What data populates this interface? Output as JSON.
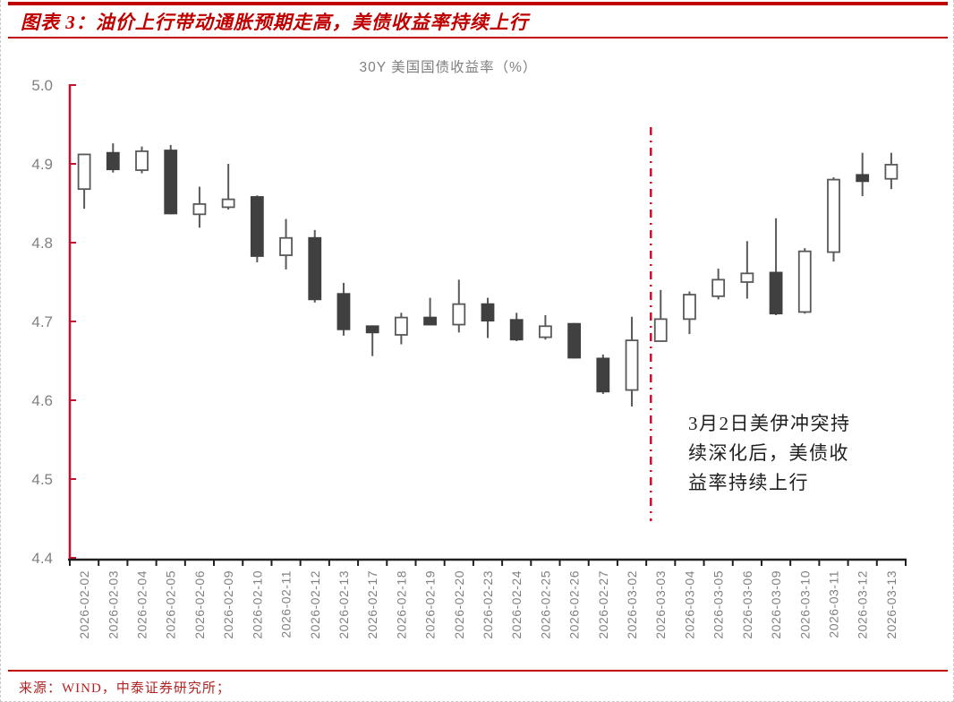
{
  "header": {
    "title": "图表 3：油价上行带动通胀预期走高，美债收益率持续上行"
  },
  "chart_data": {
    "type": "candlestick",
    "title": "30Y 美国国债收益率（%）",
    "ylim": [
      4.4,
      5.0
    ],
    "ytick_labels": [
      "5.0",
      "4.9",
      "4.8",
      "4.7",
      "4.6",
      "4.5",
      "4.4"
    ],
    "grid": "off",
    "legend": "none",
    "candles": [
      {
        "date": "2026-02-02",
        "open": 4.868,
        "high": 4.912,
        "low": 4.843,
        "close": 4.912
      },
      {
        "date": "2026-02-03",
        "open": 4.914,
        "high": 4.926,
        "low": 4.889,
        "close": 4.893
      },
      {
        "date": "2026-02-04",
        "open": 4.892,
        "high": 4.922,
        "low": 4.888,
        "close": 4.916
      },
      {
        "date": "2026-02-05",
        "open": 4.917,
        "high": 4.924,
        "low": 4.836,
        "close": 4.837
      },
      {
        "date": "2026-02-06",
        "open": 4.836,
        "high": 4.871,
        "low": 4.819,
        "close": 4.849
      },
      {
        "date": "2026-02-09",
        "open": 4.845,
        "high": 4.9,
        "low": 4.842,
        "close": 4.855
      },
      {
        "date": "2026-02-10",
        "open": 4.858,
        "high": 4.86,
        "low": 4.775,
        "close": 4.783
      },
      {
        "date": "2026-02-11",
        "open": 4.784,
        "high": 4.83,
        "low": 4.766,
        "close": 4.806
      },
      {
        "date": "2026-02-12",
        "open": 4.806,
        "high": 4.816,
        "low": 4.724,
        "close": 4.728
      },
      {
        "date": "2026-02-13",
        "open": 4.735,
        "high": 4.749,
        "low": 4.682,
        "close": 4.69
      },
      {
        "date": "2026-02-17",
        "open": 4.694,
        "high": 4.695,
        "low": 4.656,
        "close": 4.686
      },
      {
        "date": "2026-02-18",
        "open": 4.683,
        "high": 4.711,
        "low": 4.671,
        "close": 4.705
      },
      {
        "date": "2026-02-19",
        "open": 4.705,
        "high": 4.73,
        "low": 4.695,
        "close": 4.696
      },
      {
        "date": "2026-02-20",
        "open": 4.696,
        "high": 4.753,
        "low": 4.686,
        "close": 4.722
      },
      {
        "date": "2026-02-23",
        "open": 4.722,
        "high": 4.73,
        "low": 4.679,
        "close": 4.701
      },
      {
        "date": "2026-02-24",
        "open": 4.702,
        "high": 4.711,
        "low": 4.675,
        "close": 4.677
      },
      {
        "date": "2026-02-25",
        "open": 4.68,
        "high": 4.708,
        "low": 4.677,
        "close": 4.694
      },
      {
        "date": "2026-02-26",
        "open": 4.697,
        "high": 4.698,
        "low": 4.653,
        "close": 4.654
      },
      {
        "date": "2026-02-27",
        "open": 4.653,
        "high": 4.658,
        "low": 4.608,
        "close": 4.611
      },
      {
        "date": "2026-03-02",
        "open": 4.613,
        "high": 4.706,
        "low": 4.592,
        "close": 4.676
      },
      {
        "date": "2026-03-03",
        "open": 4.675,
        "high": 4.74,
        "low": 4.674,
        "close": 4.703
      },
      {
        "date": "2026-03-04",
        "open": 4.703,
        "high": 4.738,
        "low": 4.684,
        "close": 4.734
      },
      {
        "date": "2026-03-05",
        "open": 4.732,
        "high": 4.767,
        "low": 4.728,
        "close": 4.753
      },
      {
        "date": "2026-03-06",
        "open": 4.75,
        "high": 4.802,
        "low": 4.729,
        "close": 4.761
      },
      {
        "date": "2026-03-09",
        "open": 4.762,
        "high": 4.831,
        "low": 4.708,
        "close": 4.71
      },
      {
        "date": "2026-03-10",
        "open": 4.712,
        "high": 4.793,
        "low": 4.71,
        "close": 4.789
      },
      {
        "date": "2026-03-11",
        "open": 4.788,
        "high": 4.883,
        "low": 4.776,
        "close": 4.88
      },
      {
        "date": "2026-03-12",
        "open": 4.886,
        "high": 4.914,
        "low": 4.859,
        "close": 4.878
      },
      {
        "date": "2026-03-13",
        "open": 4.881,
        "high": 4.914,
        "low": 4.868,
        "close": 4.899
      }
    ],
    "event_line": {
      "after_category": "2026-03-02",
      "style": "dash-dot"
    },
    "annotation": {
      "lines": [
        "3月2日美伊冲突持",
        "续深化后，美债收",
        "益率持续上行"
      ]
    }
  },
  "footer": {
    "source": "来源：WIND，中泰证券研究所；"
  },
  "colors": {
    "accent_red": "#C00000",
    "axis_red": "#C8102E",
    "event_line_red": "#C8102E",
    "x_axis_dark": "#1f1f1f",
    "label_gray": "#808080",
    "candle_fill_down": "#404040",
    "candle_stroke_down": "#404040",
    "candle_fill_up": "#FFFFFF",
    "candle_stroke_up": "#595959",
    "wick_gray": "#595959"
  }
}
